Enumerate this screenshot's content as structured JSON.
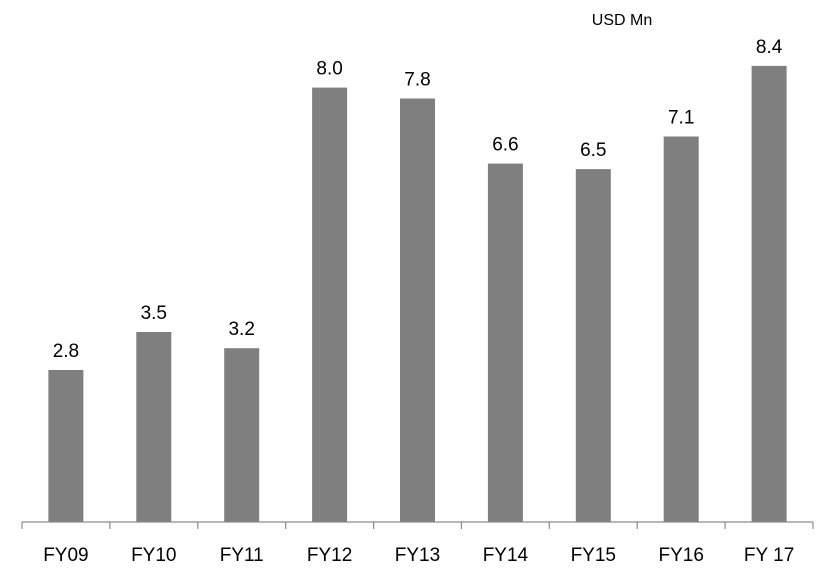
{
  "chart_data": {
    "type": "bar",
    "unit_label": "USD Mn",
    "categories": [
      "FY09",
      "FY10",
      "FY11",
      "FY12",
      "FY13",
      "FY14",
      "FY15",
      "FY16",
      "FY 17"
    ],
    "values": [
      2.8,
      3.5,
      3.2,
      8.0,
      7.8,
      6.6,
      6.5,
      7.1,
      8.4
    ],
    "data_labels": [
      "2.8",
      "3.5",
      "3.2",
      "8.0",
      "7.8",
      "6.6",
      "6.5",
      "7.1",
      "8.4"
    ],
    "ylim": [
      0,
      9
    ],
    "grid": false,
    "legend": "none",
    "colors": {
      "bar": "#7f7f7f",
      "axis": "#8c8c8c",
      "text": "#000000"
    }
  }
}
